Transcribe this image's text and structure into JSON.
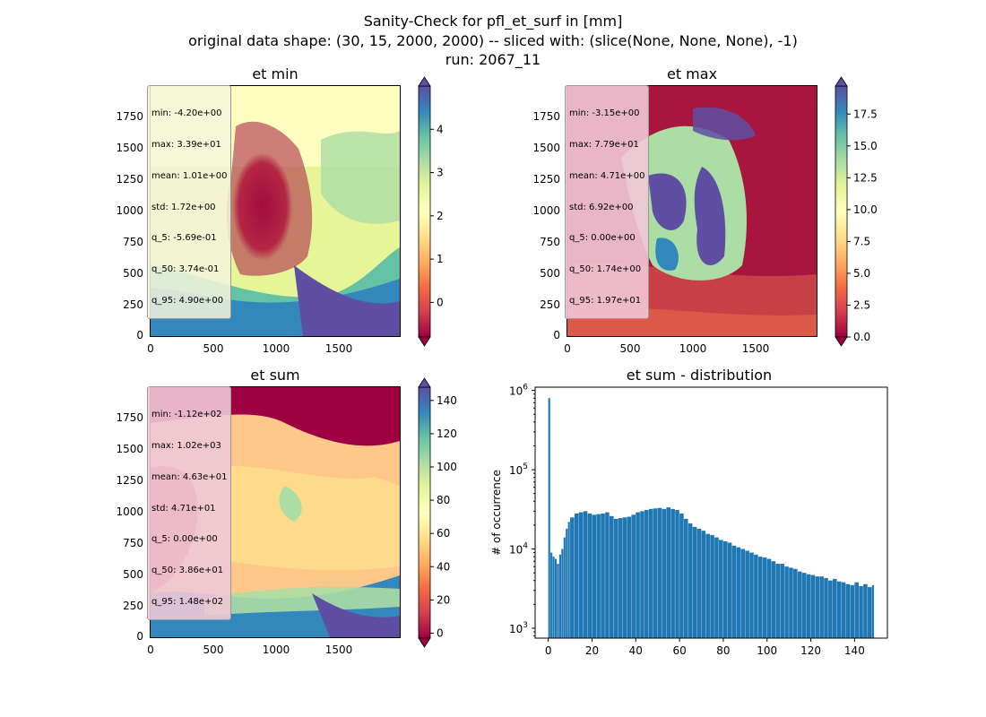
{
  "suptitle": {
    "line1": "Sanity-Check for pfl_et_surf in [mm]",
    "line2": "original data shape: (30, 15, 2000, 2000) -- sliced with: (slice(None, None, None), -1)",
    "line3": "run: 2067_11"
  },
  "colormap": "Spectral",
  "colormap_stops": [
    "#9e0142",
    "#d53e4f",
    "#f46d43",
    "#fdae61",
    "#fee08b",
    "#ffffbf",
    "#e6f598",
    "#abdda4",
    "#66c2a5",
    "#3288bd",
    "#5e4fa2"
  ],
  "histogram_color": "#1f77b4",
  "maps": [
    {
      "title": "et min",
      "stats": [
        "min: -4.20e+00",
        "max: 3.39e+01",
        "mean: 1.01e+00",
        "std: 1.72e+00",
        "q_5: -5.69e-01",
        "q_50: 3.74e-01",
        "q_95: 4.90e+00"
      ],
      "x_ticks": [
        "0",
        "500",
        "1000",
        "1500"
      ],
      "y_ticks": [
        "0",
        "250",
        "500",
        "750",
        "1000",
        "1250",
        "1500",
        "1750"
      ],
      "cbar_ticks": [
        "0",
        "1",
        "2",
        "3",
        "4"
      ],
      "cbar_range": [
        -0.8,
        5.0
      ]
    },
    {
      "title": "et max",
      "stats": [
        "min: -3.15e+00",
        "max: 7.79e+01",
        "mean: 4.71e+00",
        "std: 6.92e+00",
        "q_5: 0.00e+00",
        "q_50: 1.74e+00",
        "q_95: 1.97e+01"
      ],
      "x_ticks": [
        "0",
        "500",
        "1000",
        "1500"
      ],
      "y_ticks": [
        "0",
        "250",
        "500",
        "750",
        "1000",
        "1250",
        "1500",
        "1750"
      ],
      "cbar_ticks": [
        "0.0",
        "2.5",
        "5.0",
        "7.5",
        "10.0",
        "12.5",
        "15.0",
        "17.5"
      ],
      "cbar_range": [
        0,
        19.7
      ]
    },
    {
      "title": "et sum",
      "stats": [
        "min: -1.12e+02",
        "max: 1.02e+03",
        "mean: 4.63e+01",
        "std: 4.71e+01",
        "q_5: 0.00e+00",
        "q_50: 3.86e+01",
        "q_95: 1.48e+02"
      ],
      "x_ticks": [
        "0",
        "500",
        "1000",
        "1500"
      ],
      "y_ticks": [
        "0",
        "250",
        "500",
        "750",
        "1000",
        "1250",
        "1500",
        "1750"
      ],
      "cbar_ticks": [
        "0",
        "20",
        "40",
        "60",
        "80",
        "100",
        "120",
        "140"
      ],
      "cbar_range": [
        -3,
        148
      ]
    }
  ],
  "chart_data": {
    "type": "bar",
    "title": "et sum - distribution",
    "xlabel": "",
    "ylabel": "# of occurrence",
    "yscale": "log",
    "xlim": [
      -6,
      155
    ],
    "ylim": [
      750,
      1100000
    ],
    "x_ticks": [
      "0",
      "20",
      "40",
      "60",
      "80",
      "100",
      "120",
      "140"
    ],
    "y_tick_exponents": [
      "3",
      "4",
      "5",
      "6"
    ],
    "y_tick_base": "10",
    "bins": [
      0,
      1,
      2,
      3,
      4,
      5,
      6,
      7,
      8,
      9,
      10,
      12,
      14,
      16,
      18,
      20,
      22,
      24,
      26,
      28,
      30,
      32,
      34,
      36,
      38,
      40,
      42,
      44,
      46,
      48,
      50,
      52,
      54,
      56,
      58,
      60,
      62,
      64,
      66,
      68,
      70,
      72,
      74,
      76,
      78,
      80,
      82,
      84,
      86,
      88,
      90,
      92,
      94,
      96,
      98,
      100,
      102,
      104,
      106,
      108,
      110,
      112,
      114,
      116,
      118,
      120,
      122,
      124,
      126,
      128,
      130,
      132,
      134,
      136,
      138,
      140,
      142,
      144,
      146,
      148
    ],
    "counts": [
      800000,
      9000,
      8000,
      7500,
      6500,
      8500,
      10000,
      14000,
      18000,
      22000,
      25000,
      28000,
      29000,
      30000,
      28000,
      27000,
      27500,
      28000,
      29000,
      26000,
      24000,
      24500,
      25000,
      25500,
      27000,
      29000,
      30000,
      31000,
      32000,
      32500,
      33000,
      32000,
      33500,
      32000,
      31000,
      28000,
      24000,
      21000,
      19000,
      18000,
      17000,
      15500,
      15000,
      14000,
      13000,
      12500,
      12000,
      11000,
      10500,
      10000,
      9500,
      9000,
      8500,
      8000,
      7800,
      7500,
      7000,
      6500,
      6500,
      6000,
      5800,
      5600,
      5200,
      5000,
      4800,
      4700,
      4500,
      4500,
      4300,
      4000,
      4200,
      3900,
      3800,
      3600,
      3500,
      3800,
      3400,
      3600,
      3300,
      3500
    ]
  }
}
